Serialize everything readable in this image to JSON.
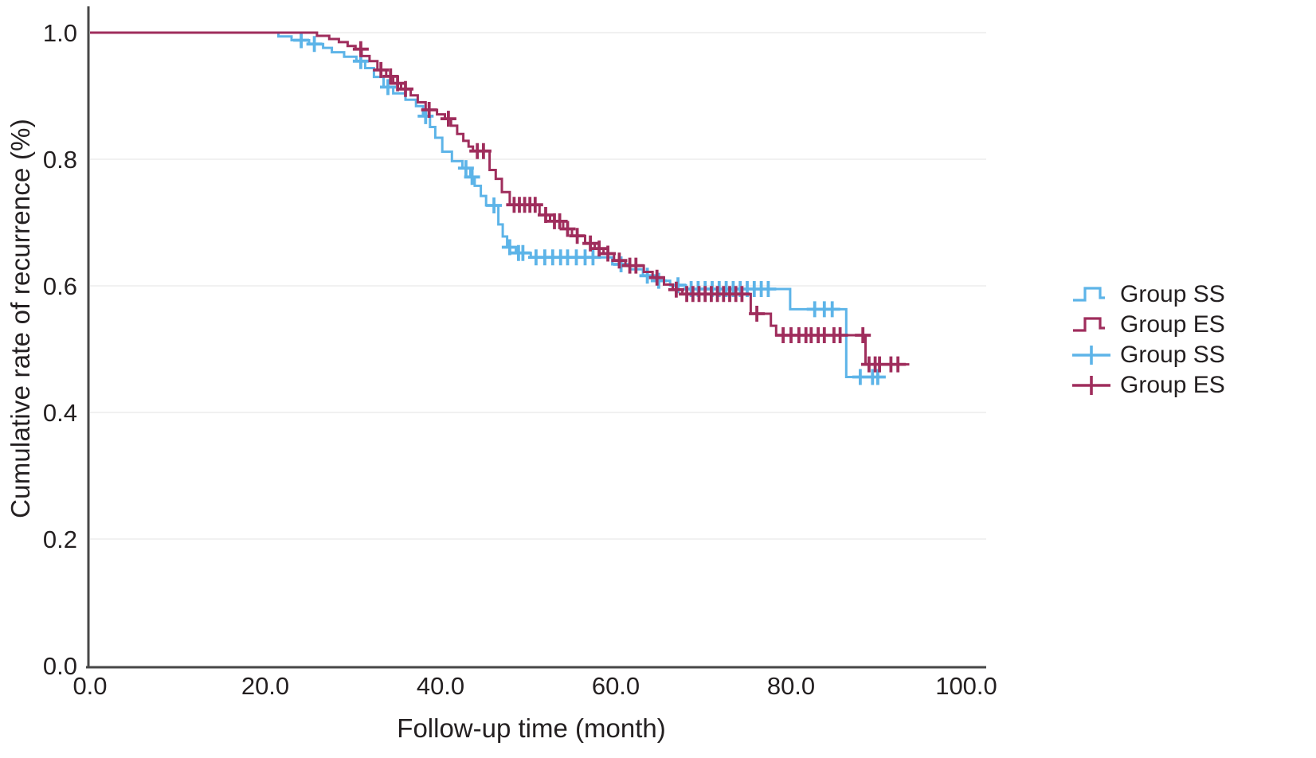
{
  "figure_background": "#ffffff",
  "colors": {
    "group_ss": "#5db4e8",
    "group_es": "#9f2d5c",
    "axis_line": "#474747",
    "grid_line": "#f1f1f1",
    "text": "#242021"
  },
  "chart_data": {
    "type": "line",
    "subtype": "kaplan-meier-step-curves-with-censor-marks",
    "title": "",
    "xlabel": "Follow-up time (month)",
    "ylabel": "Cumulative rate of recurrence (%)",
    "xlim": [
      0,
      102
    ],
    "ylim": [
      0.0,
      1.0
    ],
    "grid": "horizontal-only, very light",
    "legend_position": "right, outside plot",
    "x_ticks": [
      {
        "value": 0,
        "label": "0.0"
      },
      {
        "value": 20,
        "label": "20.0"
      },
      {
        "value": 40,
        "label": "40.0"
      },
      {
        "value": 60,
        "label": "60.0"
      },
      {
        "value": 80,
        "label": "80.0"
      },
      {
        "value": 100,
        "label": "100.0"
      }
    ],
    "y_ticks": [
      {
        "value": 0.0,
        "label": "0.0"
      },
      {
        "value": 0.2,
        "label": "0.2"
      },
      {
        "value": 0.4,
        "label": "0.4"
      },
      {
        "value": 0.6,
        "label": "0.6"
      },
      {
        "value": 0.8,
        "label": "0.8"
      },
      {
        "value": 1.0,
        "label": "1.0"
      }
    ],
    "series": [
      {
        "name": "Group SS",
        "color": "#5db4e8",
        "end_month": 90.6,
        "step_points": [
          [
            0,
            1.0
          ],
          [
            21.5,
            0.994
          ],
          [
            23.0,
            0.988
          ],
          [
            25.0,
            0.982
          ],
          [
            26.6,
            0.976
          ],
          [
            27.6,
            0.969
          ],
          [
            29.0,
            0.962
          ],
          [
            30.4,
            0.955
          ],
          [
            31.4,
            0.944
          ],
          [
            32.4,
            0.93
          ],
          [
            33.5,
            0.914
          ],
          [
            34.6,
            0.904
          ],
          [
            36.0,
            0.894
          ],
          [
            37.2,
            0.884
          ],
          [
            38.0,
            0.868
          ],
          [
            38.8,
            0.851
          ],
          [
            39.4,
            0.834
          ],
          [
            40.2,
            0.812
          ],
          [
            41.3,
            0.797
          ],
          [
            42.5,
            0.786
          ],
          [
            43.4,
            0.772
          ],
          [
            43.9,
            0.758
          ],
          [
            44.6,
            0.742
          ],
          [
            45.2,
            0.727
          ],
          [
            46.6,
            0.697
          ],
          [
            47.1,
            0.678
          ],
          [
            47.6,
            0.661
          ],
          [
            48.6,
            0.652
          ],
          [
            50.3,
            0.645
          ],
          [
            59.6,
            0.634
          ],
          [
            61.6,
            0.626
          ],
          [
            63.1,
            0.616
          ],
          [
            64.6,
            0.608
          ],
          [
            66.2,
            0.601
          ],
          [
            68.0,
            0.595
          ],
          [
            79.9,
            0.563
          ],
          [
            86.3,
            0.456
          ]
        ],
        "censor_points": [
          [
            24.1,
            0.988
          ],
          [
            25.6,
            0.982
          ],
          [
            30.9,
            0.955
          ],
          [
            34.0,
            0.914
          ],
          [
            38.3,
            0.868
          ],
          [
            42.9,
            0.786
          ],
          [
            43.6,
            0.772
          ],
          [
            46.1,
            0.727
          ],
          [
            47.9,
            0.661
          ],
          [
            48.9,
            0.652
          ],
          [
            49.4,
            0.652
          ],
          [
            50.9,
            0.645
          ],
          [
            51.9,
            0.645
          ],
          [
            52.8,
            0.645
          ],
          [
            53.7,
            0.645
          ],
          [
            54.5,
            0.645
          ],
          [
            55.5,
            0.645
          ],
          [
            56.5,
            0.645
          ],
          [
            57.4,
            0.645
          ],
          [
            60.6,
            0.634
          ],
          [
            63.6,
            0.616
          ],
          [
            64.9,
            0.608
          ],
          [
            67.1,
            0.601
          ],
          [
            68.6,
            0.595
          ],
          [
            69.4,
            0.595
          ],
          [
            70.2,
            0.595
          ],
          [
            71.0,
            0.595
          ],
          [
            71.8,
            0.595
          ],
          [
            72.6,
            0.595
          ],
          [
            73.4,
            0.595
          ],
          [
            74.2,
            0.595
          ],
          [
            75.0,
            0.595
          ],
          [
            75.8,
            0.595
          ],
          [
            76.6,
            0.595
          ],
          [
            77.4,
            0.595
          ],
          [
            82.7,
            0.563
          ],
          [
            83.8,
            0.563
          ],
          [
            84.7,
            0.563
          ],
          [
            87.9,
            0.456
          ],
          [
            89.3,
            0.456
          ],
          [
            89.9,
            0.456
          ]
        ]
      },
      {
        "name": "Group ES",
        "color": "#9f2d5c",
        "end_month": 93.5,
        "step_points": [
          [
            0,
            1.0
          ],
          [
            25.9,
            0.995
          ],
          [
            27.3,
            0.99
          ],
          [
            28.4,
            0.985
          ],
          [
            29.4,
            0.979
          ],
          [
            30.3,
            0.974
          ],
          [
            31.0,
            0.963
          ],
          [
            31.9,
            0.955
          ],
          [
            32.8,
            0.941
          ],
          [
            33.8,
            0.931
          ],
          [
            34.6,
            0.92
          ],
          [
            35.5,
            0.911
          ],
          [
            36.6,
            0.901
          ],
          [
            37.4,
            0.89
          ],
          [
            38.3,
            0.878
          ],
          [
            39.6,
            0.871
          ],
          [
            40.5,
            0.864
          ],
          [
            41.2,
            0.853
          ],
          [
            41.9,
            0.84
          ],
          [
            42.6,
            0.829
          ],
          [
            43.2,
            0.82
          ],
          [
            43.7,
            0.813
          ],
          [
            45.6,
            0.783
          ],
          [
            46.3,
            0.769
          ],
          [
            47.0,
            0.748
          ],
          [
            47.9,
            0.728
          ],
          [
            51.3,
            0.712
          ],
          [
            52.5,
            0.702
          ],
          [
            54.0,
            0.69
          ],
          [
            55.0,
            0.679
          ],
          [
            56.5,
            0.667
          ],
          [
            57.6,
            0.659
          ],
          [
            58.6,
            0.651
          ],
          [
            59.8,
            0.64
          ],
          [
            61.1,
            0.632
          ],
          [
            63.2,
            0.622
          ],
          [
            64.2,
            0.613
          ],
          [
            65.5,
            0.602
          ],
          [
            66.5,
            0.594
          ],
          [
            67.6,
            0.587
          ],
          [
            75.4,
            0.556
          ],
          [
            77.7,
            0.537
          ],
          [
            78.3,
            0.522
          ],
          [
            88.5,
            0.476
          ]
        ],
        "censor_points": [
          [
            30.9,
            0.974
          ],
          [
            33.2,
            0.941
          ],
          [
            34.3,
            0.931
          ],
          [
            35.1,
            0.92
          ],
          [
            36.0,
            0.911
          ],
          [
            38.7,
            0.878
          ],
          [
            40.9,
            0.864
          ],
          [
            44.2,
            0.813
          ],
          [
            44.9,
            0.813
          ],
          [
            48.4,
            0.728
          ],
          [
            49.0,
            0.728
          ],
          [
            49.6,
            0.728
          ],
          [
            50.2,
            0.728
          ],
          [
            50.8,
            0.728
          ],
          [
            52.0,
            0.712
          ],
          [
            53.0,
            0.702
          ],
          [
            53.6,
            0.702
          ],
          [
            54.5,
            0.69
          ],
          [
            55.6,
            0.679
          ],
          [
            57.1,
            0.667
          ],
          [
            58.1,
            0.659
          ],
          [
            59.1,
            0.651
          ],
          [
            60.4,
            0.64
          ],
          [
            61.6,
            0.632
          ],
          [
            62.3,
            0.632
          ],
          [
            64.7,
            0.613
          ],
          [
            66.9,
            0.594
          ],
          [
            68.1,
            0.587
          ],
          [
            68.8,
            0.587
          ],
          [
            69.5,
            0.587
          ],
          [
            70.2,
            0.587
          ],
          [
            70.9,
            0.587
          ],
          [
            71.6,
            0.587
          ],
          [
            72.3,
            0.587
          ],
          [
            73.0,
            0.587
          ],
          [
            73.7,
            0.587
          ],
          [
            74.4,
            0.587
          ],
          [
            76.1,
            0.556
          ],
          [
            79.1,
            0.522
          ],
          [
            80.0,
            0.522
          ],
          [
            80.9,
            0.522
          ],
          [
            81.7,
            0.522
          ],
          [
            82.3,
            0.522
          ],
          [
            83.1,
            0.522
          ],
          [
            83.8,
            0.522
          ],
          [
            84.9,
            0.522
          ],
          [
            85.6,
            0.522
          ],
          [
            88.2,
            0.522
          ],
          [
            88.9,
            0.476
          ],
          [
            89.6,
            0.476
          ],
          [
            90.1,
            0.476
          ],
          [
            91.4,
            0.476
          ],
          [
            92.2,
            0.476
          ]
        ]
      }
    ],
    "legend": [
      {
        "label": "Group SS",
        "symbol": "step-line",
        "color": "#5db4e8"
      },
      {
        "label": "Group ES",
        "symbol": "step-line",
        "color": "#9f2d5c"
      },
      {
        "label": "Group SS",
        "symbol": "plus-cross",
        "color": "#5db4e8"
      },
      {
        "label": "Group ES",
        "symbol": "plus-cross",
        "color": "#9f2d5c"
      }
    ]
  }
}
